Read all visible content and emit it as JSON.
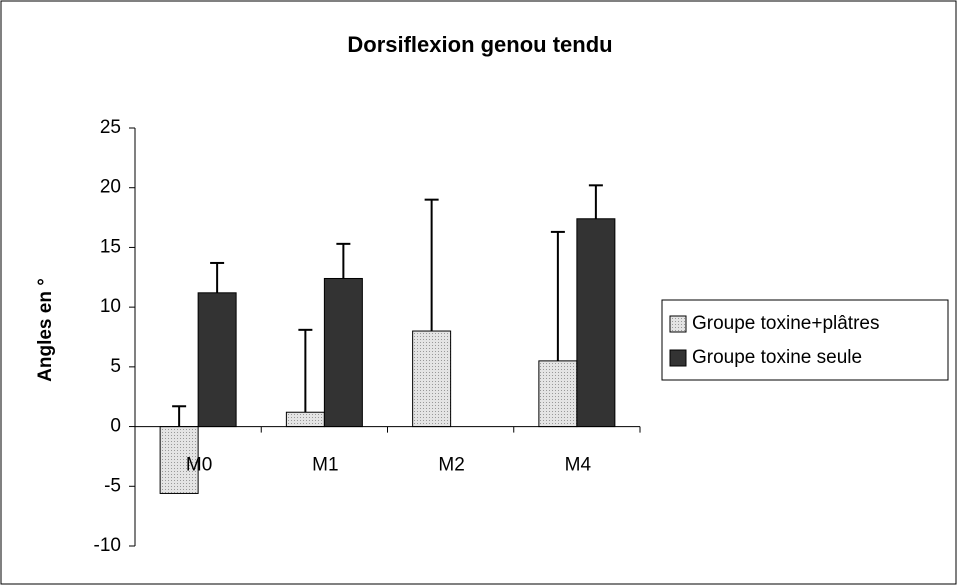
{
  "chart_data": {
    "type": "bar",
    "title": "Dorsiflexion genou tendu",
    "y_label": "Angles en °",
    "categories": [
      "M0",
      "M1",
      "M2",
      "M4"
    ],
    "series": [
      {
        "name": "Groupe toxine+plâtres",
        "color": "#d6d6d6",
        "values": [
          -5.6,
          1.2,
          8,
          5.5
        ],
        "errors": [
          7.3,
          6.9,
          11,
          10.8
        ]
      },
      {
        "name": "Groupe toxine seule",
        "color": "#333333",
        "values": [
          11.2,
          12.4,
          null,
          17.4
        ],
        "errors": [
          2.5,
          2.9,
          null,
          2.8
        ]
      }
    ],
    "ylim": [
      -10,
      25
    ],
    "yticks": [
      -10,
      -5,
      0,
      5,
      10,
      15,
      20,
      25
    ],
    "legend": "right"
  }
}
